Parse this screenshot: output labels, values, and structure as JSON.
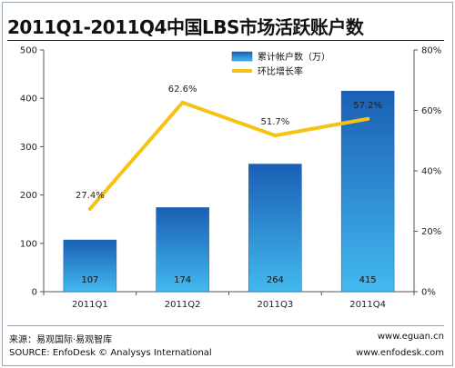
{
  "chart_data": {
    "type": "bar",
    "title": "2011Q1-2011Q4中国LBS市场活跃账户数",
    "categories": [
      "2011Q1",
      "2011Q2",
      "2011Q3",
      "2011Q4"
    ],
    "series": [
      {
        "name": "累计帐户数（万）",
        "type": "bar",
        "axis": "left",
        "values": [
          107,
          174,
          264,
          415
        ],
        "value_labels": [
          "107",
          "174",
          "264",
          "415"
        ],
        "color": "#1e6fc8"
      },
      {
        "name": "环比增长率",
        "type": "line",
        "axis": "right",
        "values": [
          27.4,
          62.6,
          51.7,
          57.2
        ],
        "value_labels": [
          "27.4%",
          "62.6%",
          "51.7%",
          "57.2%"
        ],
        "color": "#f6c315"
      }
    ],
    "y_left": {
      "min": 0,
      "max": 500,
      "ticks": [
        "0",
        "100",
        "200",
        "300",
        "400",
        "500"
      ]
    },
    "y_right": {
      "min": 0,
      "max": 80,
      "ticks": [
        "0%",
        "20%",
        "40%",
        "60%",
        "80%"
      ]
    },
    "grid": false,
    "legend_position": "top-right"
  },
  "footer": {
    "source_cn": "来源：易观国际·易观智库",
    "source_en": "SOURCE: EnfoDesk © Analysys International",
    "url1": "www.eguan.cn",
    "url2": "www.enfodesk.com"
  }
}
